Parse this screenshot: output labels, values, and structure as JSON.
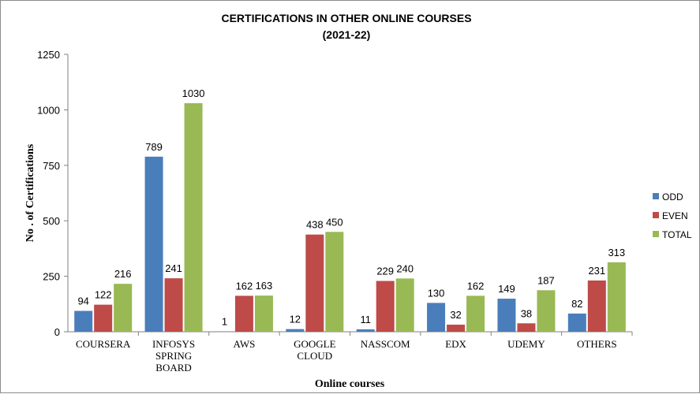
{
  "chart_data": {
    "type": "bar",
    "title": "CERTIFICATIONS IN OTHER ONLINE COURSES",
    "subtitle": "(2021-22)",
    "xlabel": "Online courses",
    "ylabel": "No . of Certifications",
    "ylim": [
      0,
      1250
    ],
    "yticks": [
      0,
      250,
      500,
      750,
      1000,
      1250
    ],
    "grid": false,
    "legend_position": "right",
    "categories": [
      [
        "COURSERA"
      ],
      [
        "INFOSYS",
        "SPRING",
        "BOARD"
      ],
      [
        "AWS"
      ],
      [
        "GOOGLE",
        "CLOUD"
      ],
      [
        "NASSCOM"
      ],
      [
        "EDX"
      ],
      [
        "UDEMY"
      ],
      [
        "OTHERS"
      ]
    ],
    "series": [
      {
        "name": "ODD",
        "color": "#4a7ebb",
        "values": [
          94,
          789,
          1,
          12,
          11,
          130,
          149,
          82
        ]
      },
      {
        "name": "EVEN",
        "color": "#be4b48",
        "values": [
          122,
          241,
          162,
          438,
          229,
          32,
          38,
          231
        ]
      },
      {
        "name": "TOTAL",
        "color": "#98b954",
        "values": [
          216,
          1030,
          163,
          450,
          240,
          162,
          187,
          313
        ]
      }
    ]
  }
}
